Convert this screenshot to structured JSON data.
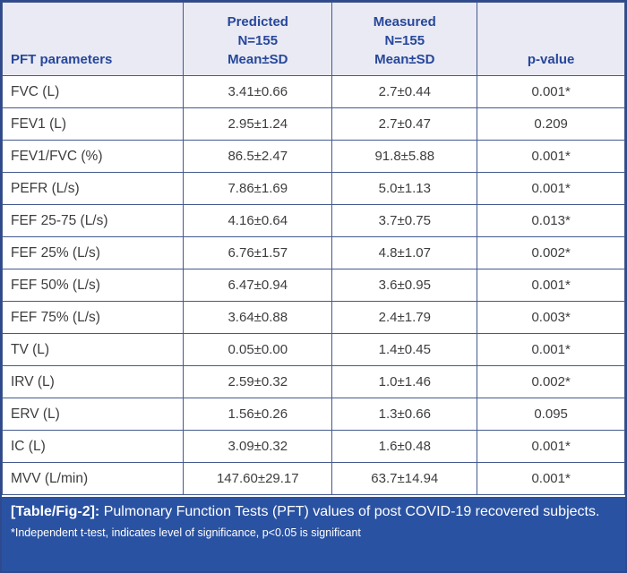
{
  "figure": {
    "colors": {
      "header_bg": "#e9eaf3",
      "header_text": "#27479b",
      "grid_line": "#44598e",
      "outer_border": "#2e4a8c",
      "body_text": "#3d3d3d",
      "caption_bg": "#2a52a2",
      "caption_text": "#ffffff"
    }
  },
  "table": {
    "headers": {
      "param": "PFT parameters",
      "predicted": "Predicted\nN=155\nMean±SD",
      "measured": "Measured\nN=155\nMean±SD",
      "p_value": "p-value"
    },
    "rows": [
      {
        "param": "FVC (L)",
        "predicted": "3.41±0.66",
        "measured": "2.7±0.44",
        "p": "0.001*"
      },
      {
        "param": "FEV1 (L)",
        "predicted": "2.95±1.24",
        "measured": "2.7±0.47",
        "p": "0.209"
      },
      {
        "param": "FEV1/FVC (%)",
        "predicted": "86.5±2.47",
        "measured": "91.8±5.88",
        "p": "0.001*"
      },
      {
        "param": "PEFR (L/s)",
        "predicted": "7.86±1.69",
        "measured": "5.0±1.13",
        "p": "0.001*"
      },
      {
        "param": "FEF 25-75 (L/s)",
        "predicted": "4.16±0.64",
        "measured": "3.7±0.75",
        "p": "0.013*"
      },
      {
        "param": "FEF 25% (L/s)",
        "predicted": "6.76±1.57",
        "measured": "4.8±1.07",
        "p": "0.002*"
      },
      {
        "param": "FEF 50% (L/s)",
        "predicted": "6.47±0.94",
        "measured": "3.6±0.95",
        "p": "0.001*"
      },
      {
        "param": "FEF 75% (L/s)",
        "predicted": "3.64±0.88",
        "measured": "2.4±1.79",
        "p": "0.003*"
      },
      {
        "param": "TV (L)",
        "predicted": "0.05±0.00",
        "measured": "1.4±0.45",
        "p": "0.001*"
      },
      {
        "param": "IRV (L)",
        "predicted": "2.59±0.32",
        "measured": "1.0±1.46",
        "p": "0.002*"
      },
      {
        "param": "ERV (L)",
        "predicted": "1.56±0.26",
        "measured": "1.3±0.66",
        "p": "0.095"
      },
      {
        "param": "IC (L)",
        "predicted": "3.09±0.32",
        "measured": "1.6±0.48",
        "p": "0.001*"
      },
      {
        "param": "MVV (L/min)",
        "predicted": "147.60±29.17",
        "measured": "63.7±14.94",
        "p": "0.001*"
      }
    ]
  },
  "caption": {
    "label": "[Table/Fig-2]:",
    "text": "Pulmonary Function Tests (PFT) values of post COVID-19 recovered subjects.",
    "footnote": "*Independent t-test, indicates level of significance, p<0.05 is significant"
  }
}
